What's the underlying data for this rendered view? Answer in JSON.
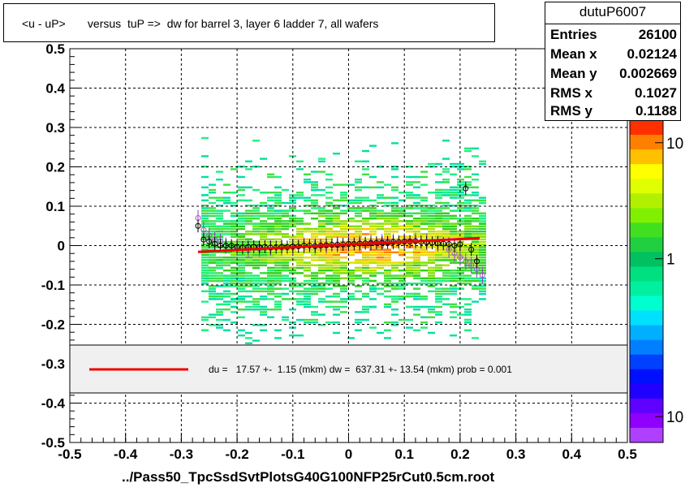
{
  "title": "<u - uP>       versus  tuP =>  dw for barrel 3, layer 6 ladder 7, all wafers",
  "xlabel": "../Pass50_TpcSsdSvtPlotsG40G100NFP25rCut0.5cm.root",
  "stats": {
    "name": "dutuP6007",
    "rows": [
      {
        "key": "Entries",
        "value": "26100"
      },
      {
        "key": "Mean x",
        "value": "0.02124"
      },
      {
        "key": "Mean y",
        "value": "0.002669"
      },
      {
        "key": "RMS x",
        "value": "0.1027"
      },
      {
        "key": "RMS y",
        "value": "0.1188"
      }
    ]
  },
  "legend": {
    "text": "du =   17.57 +-  1.15 (mkm) dw =  637.31 +- 13.54 (mkm) prob = 0.001",
    "line_color": "#ee0000"
  },
  "chart_data": {
    "type": "heatmap",
    "xlim": [
      -0.5,
      0.5
    ],
    "ylim": [
      -0.5,
      0.5
    ],
    "x_ticks": [
      -0.5,
      -0.4,
      -0.3,
      -0.2,
      -0.1,
      0,
      0.1,
      0.2,
      0.3,
      0.4,
      0.5
    ],
    "x_tick_labels": [
      "-0.5",
      "-0.4",
      "-0.3",
      "-0.2",
      "-0.1",
      "0",
      "0.1",
      "0.2",
      "0.3",
      "0.4",
      "0.5"
    ],
    "y_ticks": [
      -0.5,
      -0.4,
      -0.3,
      -0.2,
      -0.1,
      0,
      0.1,
      0.2,
      0.3,
      0.4,
      0.5
    ],
    "y_tick_labels": [
      "-0.5",
      "-0.4",
      "-0.3",
      "-0.2",
      "-0.1",
      "0",
      "0.1",
      "0.2",
      "0.3",
      "0.4",
      "0.5"
    ],
    "grid": true,
    "palette_labels": [
      {
        "label": "10",
        "pos": 0.07
      },
      {
        "label": "1",
        "pos": 0.43
      },
      {
        "label": "10",
        "pos": 0.92
      }
    ],
    "fit_line": {
      "x": [
        -0.27,
        0.235
      ],
      "y": [
        -0.016,
        0.019
      ],
      "color": "#ee0000"
    },
    "profile_black": {
      "x": [
        -0.27,
        -0.26,
        -0.25,
        -0.24,
        -0.23,
        -0.22,
        -0.21,
        -0.2,
        -0.19,
        -0.18,
        -0.17,
        -0.16,
        -0.15,
        -0.14,
        -0.13,
        -0.12,
        -0.11,
        -0.1,
        -0.09,
        -0.08,
        -0.07,
        -0.06,
        -0.05,
        -0.04,
        -0.03,
        -0.02,
        -0.01,
        0,
        0.01,
        0.02,
        0.03,
        0.04,
        0.05,
        0.06,
        0.07,
        0.08,
        0.09,
        0.1,
        0.11,
        0.12,
        0.13,
        0.14,
        0.15,
        0.16,
        0.17,
        0.18,
        0.19,
        0.2,
        0.21,
        0.22,
        0.23
      ],
      "y": [
        0.05,
        0.015,
        0.01,
        0.005,
        0.0,
        0.0,
        0.0,
        -0.003,
        -0.005,
        -0.004,
        -0.003,
        -0.004,
        -0.003,
        -0.005,
        -0.004,
        -0.003,
        -0.004,
        -0.002,
        -0.002,
        0.0,
        0.0,
        -0.001,
        0.0,
        0.001,
        0.002,
        0.002,
        0.003,
        0.004,
        0.004,
        0.005,
        0.006,
        0.006,
        0.007,
        0.007,
        0.008,
        0.009,
        0.009,
        0.01,
        0.01,
        0.011,
        0.009,
        0.008,
        0.007,
        0.006,
        0.005,
        0.004,
        0.0,
        0.003,
        0.145,
        -0.01,
        -0.04
      ]
    },
    "profile_violet": {
      "x": [
        -0.27,
        -0.26,
        -0.25,
        -0.24,
        -0.23,
        -0.22,
        -0.2,
        -0.18,
        -0.16,
        -0.14,
        -0.12,
        -0.1,
        -0.08,
        -0.06,
        -0.04,
        -0.02,
        0,
        0.02,
        0.04,
        0.06,
        0.08,
        0.1,
        0.12,
        0.14,
        0.16,
        0.18,
        0.19,
        0.2,
        0.21,
        0.22,
        0.23,
        0.24
      ],
      "y": [
        0.07,
        0.04,
        0.025,
        0.015,
        0.01,
        0.0,
        -0.005,
        -0.01,
        -0.008,
        -0.006,
        -0.005,
        -0.003,
        0.0,
        -0.002,
        0.0,
        0.003,
        0.004,
        0.006,
        0.008,
        0.009,
        0.01,
        0.011,
        0.012,
        0.01,
        0.005,
        -0.01,
        -0.02,
        -0.03,
        -0.04,
        -0.05,
        -0.06,
        -0.075
      ]
    }
  }
}
